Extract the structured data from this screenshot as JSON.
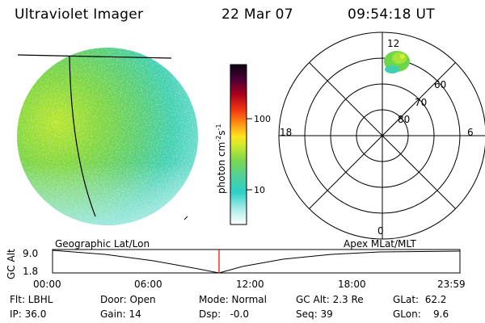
{
  "header": {
    "title": "Ultraviolet Imager",
    "date": "22 Mar 07",
    "time": "09:54:18 UT"
  },
  "colorbar": {
    "label": "photon cm",
    "label_exp1": "-2",
    "label_mid": "s",
    "label_exp2": "-1",
    "ticks": [
      "100",
      "10"
    ],
    "scale": "log"
  },
  "polar_plot": {
    "mlt_labels": [
      "12",
      "18",
      "6",
      "0"
    ],
    "mlat_labels": [
      "60",
      "70",
      "80"
    ]
  },
  "timeline": {
    "left_label": "Geographic Lat/Lon",
    "right_label": "Apex MLat/MLT",
    "y_axis_label": "GC Alt",
    "y_ticks": [
      "9.0",
      "1.8"
    ],
    "x_ticks": [
      "00:00",
      "06:00",
      "12:00",
      "18:00",
      "23:59"
    ],
    "current_time_marker": "09:54:18"
  },
  "info": {
    "flt": "Flt: LBHL",
    "ip": "IP: 36.0",
    "door": "Door: Open",
    "gain": "Gain: 14",
    "mode": "Mode: Normal",
    "dsp": "Dsp:   -0.0",
    "gc_alt": "GC Alt: 2.3 Re",
    "seq": "Seq: 39",
    "glat": "GLat:  62.2",
    "glon": "GLon:    9.6"
  },
  "colors": {
    "marker": "#ff0000"
  }
}
